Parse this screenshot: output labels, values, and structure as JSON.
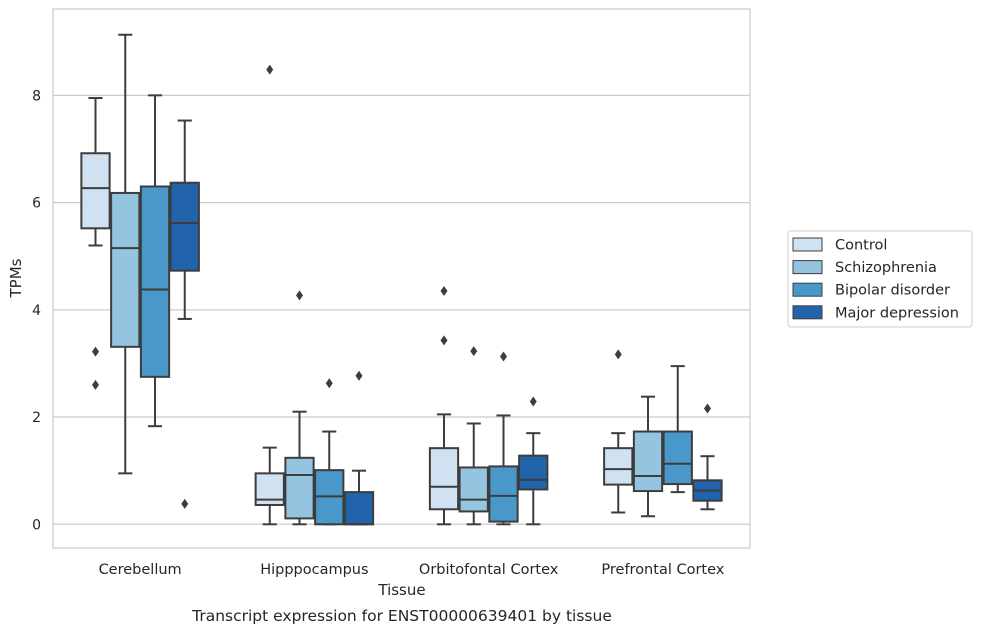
{
  "chart_data": {
    "type": "box",
    "title": "",
    "caption": "Transcript expression for ENST00000639401 by tissue",
    "xlabel": "Tissue",
    "ylabel": "TPMs",
    "ylim": [
      -0.45,
      9.7
    ],
    "yticks": [
      0,
      2,
      4,
      6,
      8
    ],
    "grid": true,
    "legend_position": "right",
    "categories": [
      "Cerebellum",
      "Hipppocampus",
      "Orbitofontal Cortex",
      "Prefrontal Cortex"
    ],
    "series": [
      {
        "name": "Control",
        "color": "#d0e1f2",
        "boxes": [
          {
            "whislo": 5.2,
            "q1": 5.52,
            "med": 6.27,
            "q3": 6.92,
            "whishi": 7.95,
            "fliers": [
              3.22,
              2.6
            ]
          },
          {
            "whislo": 0.0,
            "q1": 0.36,
            "med": 0.46,
            "q3": 0.95,
            "whishi": 1.43,
            "fliers": [
              8.48
            ]
          },
          {
            "whislo": 0.0,
            "q1": 0.28,
            "med": 0.7,
            "q3": 1.42,
            "whishi": 2.05,
            "fliers": [
              4.35,
              3.43
            ]
          },
          {
            "whislo": 0.22,
            "q1": 0.74,
            "med": 1.03,
            "q3": 1.42,
            "whishi": 1.7,
            "fliers": [
              3.17
            ]
          }
        ]
      },
      {
        "name": "Schizophrenia",
        "color": "#94c4df",
        "boxes": [
          {
            "whislo": 0.95,
            "q1": 3.31,
            "med": 5.15,
            "q3": 6.18,
            "whishi": 9.13,
            "fliers": []
          },
          {
            "whislo": 0.0,
            "q1": 0.11,
            "med": 0.92,
            "q3": 1.24,
            "whishi": 2.1,
            "fliers": [
              4.27
            ]
          },
          {
            "whislo": 0.0,
            "q1": 0.24,
            "med": 0.46,
            "q3": 1.06,
            "whishi": 1.88,
            "fliers": [
              3.23
            ]
          },
          {
            "whislo": 0.15,
            "q1": 0.62,
            "med": 0.9,
            "q3": 1.73,
            "whishi": 2.38,
            "fliers": []
          }
        ]
      },
      {
        "name": "Bipolar disorder",
        "color": "#4a98c9",
        "boxes": [
          {
            "whislo": 1.83,
            "q1": 2.75,
            "med": 4.38,
            "q3": 6.3,
            "whishi": 8.0,
            "fliers": []
          },
          {
            "whislo": 0.0,
            "q1": 0.0,
            "med": 0.52,
            "q3": 1.01,
            "whishi": 1.73,
            "fliers": [
              2.63
            ]
          },
          {
            "whislo": 0.0,
            "q1": 0.05,
            "med": 0.53,
            "q3": 1.08,
            "whishi": 2.03,
            "fliers": [
              3.13
            ]
          },
          {
            "whislo": 0.6,
            "q1": 0.75,
            "med": 1.13,
            "q3": 1.73,
            "whishi": 2.95,
            "fliers": []
          }
        ]
      },
      {
        "name": "Major depression",
        "color": "#2164ab",
        "boxes": [
          {
            "whislo": 3.83,
            "q1": 4.73,
            "med": 5.62,
            "q3": 6.37,
            "whishi": 7.53,
            "fliers": [
              0.38
            ]
          },
          {
            "whislo": 0.0,
            "q1": 0.0,
            "med": 0.0,
            "q3": 0.6,
            "whishi": 1.0,
            "fliers": [
              2.77
            ]
          },
          {
            "whislo": 0.0,
            "q1": 0.65,
            "med": 0.83,
            "q3": 1.28,
            "whishi": 1.7,
            "fliers": [
              2.29
            ]
          },
          {
            "whislo": 0.28,
            "q1": 0.44,
            "med": 0.63,
            "q3": 0.82,
            "whishi": 1.27,
            "fliers": [
              2.16
            ]
          }
        ]
      }
    ]
  }
}
